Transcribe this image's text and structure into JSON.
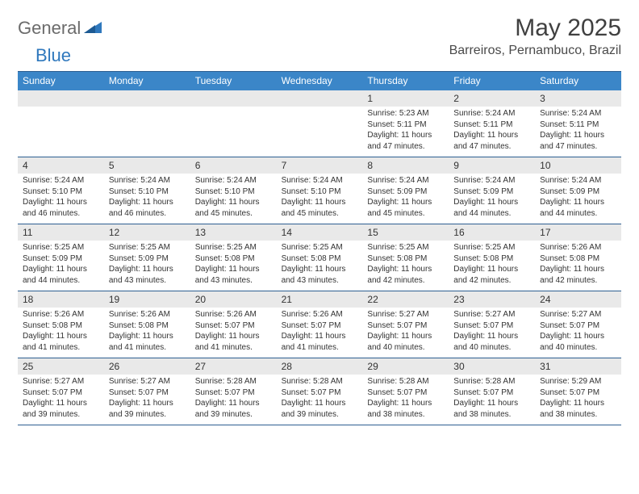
{
  "logo": {
    "part1": "General",
    "part2": "Blue"
  },
  "title": "May 2025",
  "location": "Barreiros, Pernambuco, Brazil",
  "colors": {
    "header_bg": "#3b86c8",
    "header_text": "#ffffff",
    "num_strip_bg": "#e9e9e9",
    "border": "#2d5f91",
    "logo_gray": "#6b6b6b",
    "logo_blue": "#2f78bd",
    "text": "#333333",
    "title_color": "#404040"
  },
  "days_of_week": [
    "Sunday",
    "Monday",
    "Tuesday",
    "Wednesday",
    "Thursday",
    "Friday",
    "Saturday"
  ],
  "weeks": [
    [
      {
        "num": "",
        "sunrise": "",
        "sunset": "",
        "daylight": ""
      },
      {
        "num": "",
        "sunrise": "",
        "sunset": "",
        "daylight": ""
      },
      {
        "num": "",
        "sunrise": "",
        "sunset": "",
        "daylight": ""
      },
      {
        "num": "",
        "sunrise": "",
        "sunset": "",
        "daylight": ""
      },
      {
        "num": "1",
        "sunrise": "Sunrise: 5:23 AM",
        "sunset": "Sunset: 5:11 PM",
        "daylight": "Daylight: 11 hours and 47 minutes."
      },
      {
        "num": "2",
        "sunrise": "Sunrise: 5:24 AM",
        "sunset": "Sunset: 5:11 PM",
        "daylight": "Daylight: 11 hours and 47 minutes."
      },
      {
        "num": "3",
        "sunrise": "Sunrise: 5:24 AM",
        "sunset": "Sunset: 5:11 PM",
        "daylight": "Daylight: 11 hours and 47 minutes."
      }
    ],
    [
      {
        "num": "4",
        "sunrise": "Sunrise: 5:24 AM",
        "sunset": "Sunset: 5:10 PM",
        "daylight": "Daylight: 11 hours and 46 minutes."
      },
      {
        "num": "5",
        "sunrise": "Sunrise: 5:24 AM",
        "sunset": "Sunset: 5:10 PM",
        "daylight": "Daylight: 11 hours and 46 minutes."
      },
      {
        "num": "6",
        "sunrise": "Sunrise: 5:24 AM",
        "sunset": "Sunset: 5:10 PM",
        "daylight": "Daylight: 11 hours and 45 minutes."
      },
      {
        "num": "7",
        "sunrise": "Sunrise: 5:24 AM",
        "sunset": "Sunset: 5:10 PM",
        "daylight": "Daylight: 11 hours and 45 minutes."
      },
      {
        "num": "8",
        "sunrise": "Sunrise: 5:24 AM",
        "sunset": "Sunset: 5:09 PM",
        "daylight": "Daylight: 11 hours and 45 minutes."
      },
      {
        "num": "9",
        "sunrise": "Sunrise: 5:24 AM",
        "sunset": "Sunset: 5:09 PM",
        "daylight": "Daylight: 11 hours and 44 minutes."
      },
      {
        "num": "10",
        "sunrise": "Sunrise: 5:24 AM",
        "sunset": "Sunset: 5:09 PM",
        "daylight": "Daylight: 11 hours and 44 minutes."
      }
    ],
    [
      {
        "num": "11",
        "sunrise": "Sunrise: 5:25 AM",
        "sunset": "Sunset: 5:09 PM",
        "daylight": "Daylight: 11 hours and 44 minutes."
      },
      {
        "num": "12",
        "sunrise": "Sunrise: 5:25 AM",
        "sunset": "Sunset: 5:09 PM",
        "daylight": "Daylight: 11 hours and 43 minutes."
      },
      {
        "num": "13",
        "sunrise": "Sunrise: 5:25 AM",
        "sunset": "Sunset: 5:08 PM",
        "daylight": "Daylight: 11 hours and 43 minutes."
      },
      {
        "num": "14",
        "sunrise": "Sunrise: 5:25 AM",
        "sunset": "Sunset: 5:08 PM",
        "daylight": "Daylight: 11 hours and 43 minutes."
      },
      {
        "num": "15",
        "sunrise": "Sunrise: 5:25 AM",
        "sunset": "Sunset: 5:08 PM",
        "daylight": "Daylight: 11 hours and 42 minutes."
      },
      {
        "num": "16",
        "sunrise": "Sunrise: 5:25 AM",
        "sunset": "Sunset: 5:08 PM",
        "daylight": "Daylight: 11 hours and 42 minutes."
      },
      {
        "num": "17",
        "sunrise": "Sunrise: 5:26 AM",
        "sunset": "Sunset: 5:08 PM",
        "daylight": "Daylight: 11 hours and 42 minutes."
      }
    ],
    [
      {
        "num": "18",
        "sunrise": "Sunrise: 5:26 AM",
        "sunset": "Sunset: 5:08 PM",
        "daylight": "Daylight: 11 hours and 41 minutes."
      },
      {
        "num": "19",
        "sunrise": "Sunrise: 5:26 AM",
        "sunset": "Sunset: 5:08 PM",
        "daylight": "Daylight: 11 hours and 41 minutes."
      },
      {
        "num": "20",
        "sunrise": "Sunrise: 5:26 AM",
        "sunset": "Sunset: 5:07 PM",
        "daylight": "Daylight: 11 hours and 41 minutes."
      },
      {
        "num": "21",
        "sunrise": "Sunrise: 5:26 AM",
        "sunset": "Sunset: 5:07 PM",
        "daylight": "Daylight: 11 hours and 41 minutes."
      },
      {
        "num": "22",
        "sunrise": "Sunrise: 5:27 AM",
        "sunset": "Sunset: 5:07 PM",
        "daylight": "Daylight: 11 hours and 40 minutes."
      },
      {
        "num": "23",
        "sunrise": "Sunrise: 5:27 AM",
        "sunset": "Sunset: 5:07 PM",
        "daylight": "Daylight: 11 hours and 40 minutes."
      },
      {
        "num": "24",
        "sunrise": "Sunrise: 5:27 AM",
        "sunset": "Sunset: 5:07 PM",
        "daylight": "Daylight: 11 hours and 40 minutes."
      }
    ],
    [
      {
        "num": "25",
        "sunrise": "Sunrise: 5:27 AM",
        "sunset": "Sunset: 5:07 PM",
        "daylight": "Daylight: 11 hours and 39 minutes."
      },
      {
        "num": "26",
        "sunrise": "Sunrise: 5:27 AM",
        "sunset": "Sunset: 5:07 PM",
        "daylight": "Daylight: 11 hours and 39 minutes."
      },
      {
        "num": "27",
        "sunrise": "Sunrise: 5:28 AM",
        "sunset": "Sunset: 5:07 PM",
        "daylight": "Daylight: 11 hours and 39 minutes."
      },
      {
        "num": "28",
        "sunrise": "Sunrise: 5:28 AM",
        "sunset": "Sunset: 5:07 PM",
        "daylight": "Daylight: 11 hours and 39 minutes."
      },
      {
        "num": "29",
        "sunrise": "Sunrise: 5:28 AM",
        "sunset": "Sunset: 5:07 PM",
        "daylight": "Daylight: 11 hours and 38 minutes."
      },
      {
        "num": "30",
        "sunrise": "Sunrise: 5:28 AM",
        "sunset": "Sunset: 5:07 PM",
        "daylight": "Daylight: 11 hours and 38 minutes."
      },
      {
        "num": "31",
        "sunrise": "Sunrise: 5:29 AM",
        "sunset": "Sunset: 5:07 PM",
        "daylight": "Daylight: 11 hours and 38 minutes."
      }
    ]
  ]
}
